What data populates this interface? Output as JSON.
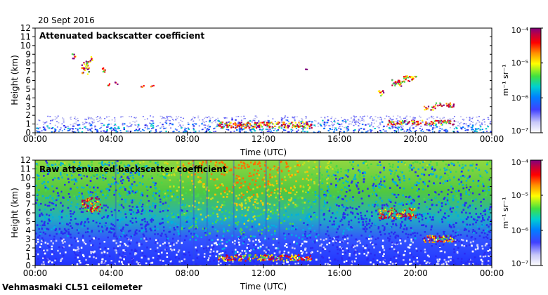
{
  "figure": {
    "date_label": "20 Sept 2016",
    "footer_label": "Vehmasmaki CL51 ceilometer"
  },
  "chart_data": [
    {
      "type": "heatmap",
      "title": "Attenuated backscatter coefficient",
      "xlabel": "Time (UTC)",
      "ylabel": "Height (km)",
      "x_ticks": [
        "00:00",
        "04:00",
        "08:00",
        "12:00",
        "16:00",
        "20:00",
        "00:00"
      ],
      "x_range_hours": [
        0,
        24
      ],
      "y_ticks": [
        0,
        1,
        2,
        3,
        4,
        5,
        6,
        7,
        8,
        9,
        10,
        11,
        12
      ],
      "ylim": [
        0,
        12
      ],
      "colorbar": {
        "scale": "log",
        "range": [
          1e-07,
          0.0001
        ],
        "tick_labels": [
          "10⁻⁴",
          "10⁻⁵",
          "10⁻⁶",
          "10⁻⁷"
        ],
        "unit_label": "m⁻¹ sr⁻¹"
      },
      "colors": {
        "low": "#d8d8f4",
        "mid_low": "#2a2af0",
        "mid": "#00c8c8",
        "mid_high": "#48d848",
        "high": "#ffff00",
        "higher": "#ff8000",
        "peak": "#c00000",
        "max": "#800080"
      },
      "features": [
        {
          "kind": "boundary_layer",
          "t_start": 0,
          "t_end": 24,
          "top_km": 1.5
        },
        {
          "kind": "cloud",
          "t_start": 1.9,
          "t_end": 2.1,
          "h_low": 8.6,
          "h_high": 9.2
        },
        {
          "kind": "cloud",
          "t_start": 2.4,
          "t_end": 2.8,
          "h_low": 6.8,
          "h_high": 8.3
        },
        {
          "kind": "cloud",
          "t_start": 2.8,
          "t_end": 3.0,
          "h_low": 8.2,
          "h_high": 8.8
        },
        {
          "kind": "cloud",
          "t_start": 3.5,
          "t_end": 3.7,
          "h_low": 7.0,
          "h_high": 7.6
        },
        {
          "kind": "cloud",
          "t_start": 3.7,
          "t_end": 3.9,
          "h_low": 5.5,
          "h_high": 5.8
        },
        {
          "kind": "cloud",
          "t_start": 4.1,
          "t_end": 4.3,
          "h_low": 5.6,
          "h_high": 5.9
        },
        {
          "kind": "cloud",
          "t_start": 5.5,
          "t_end": 5.7,
          "h_low": 5.3,
          "h_high": 5.5
        },
        {
          "kind": "cloud",
          "t_start": 6.0,
          "t_end": 6.2,
          "h_low": 5.3,
          "h_high": 5.5
        },
        {
          "kind": "cloud",
          "t_start": 14.1,
          "t_end": 14.3,
          "h_low": 7.1,
          "h_high": 7.4
        },
        {
          "kind": "cloud",
          "t_start": 18.0,
          "t_end": 18.3,
          "h_low": 4.3,
          "h_high": 4.9
        },
        {
          "kind": "cloud",
          "t_start": 18.7,
          "t_end": 19.3,
          "h_low": 5.4,
          "h_high": 6.2
        },
        {
          "kind": "cloud",
          "t_start": 19.3,
          "t_end": 20.0,
          "h_low": 5.9,
          "h_high": 6.6
        },
        {
          "kind": "cloud",
          "t_start": 20.4,
          "t_end": 21.0,
          "h_low": 2.7,
          "h_high": 3.1
        },
        {
          "kind": "cloud",
          "t_start": 21.0,
          "t_end": 22.0,
          "h_low": 3.0,
          "h_high": 3.5
        },
        {
          "kind": "cloud",
          "t_start": 9.6,
          "t_end": 14.5,
          "h_low": 0.6,
          "h_high": 1.3
        },
        {
          "kind": "cloud",
          "t_start": 18.5,
          "t_end": 22.0,
          "h_low": 1.0,
          "h_high": 1.5
        }
      ]
    },
    {
      "type": "heatmap",
      "title": "Raw attenuated backscatter coefficient",
      "xlabel": "Time (UTC)",
      "ylabel": "Height (km)",
      "x_ticks": [
        "00:00",
        "04:00",
        "08:00",
        "12:00",
        "16:00",
        "20:00",
        "00:00"
      ],
      "x_range_hours": [
        0,
        24
      ],
      "y_ticks": [
        0,
        1,
        2,
        3,
        4,
        5,
        6,
        7,
        8,
        9,
        10,
        11,
        12
      ],
      "ylim": [
        0,
        12
      ],
      "colorbar": {
        "scale": "log",
        "range": [
          1e-07,
          0.0001
        ],
        "tick_labels": [
          "10⁻⁴",
          "10⁻⁵",
          "10⁻⁶",
          "10⁻⁷"
        ],
        "unit_label": "m⁻¹ sr⁻¹"
      },
      "background": "noise field: green/yellow/orange at upper levels (daytime peak 08:00-14:00), blue/white below 4 km and after 16:00",
      "features": [
        {
          "kind": "cloud",
          "t_start": 2.4,
          "t_end": 3.4,
          "h_low": 6.2,
          "h_high": 7.8
        },
        {
          "kind": "cloud",
          "t_start": 18.0,
          "t_end": 20.0,
          "h_low": 5.4,
          "h_high": 6.6
        },
        {
          "kind": "cloud",
          "t_start": 20.4,
          "t_end": 22.0,
          "h_low": 2.7,
          "h_high": 3.5
        },
        {
          "kind": "cloud",
          "t_start": 9.6,
          "t_end": 14.5,
          "h_low": 0.6,
          "h_high": 1.3
        }
      ]
    }
  ]
}
